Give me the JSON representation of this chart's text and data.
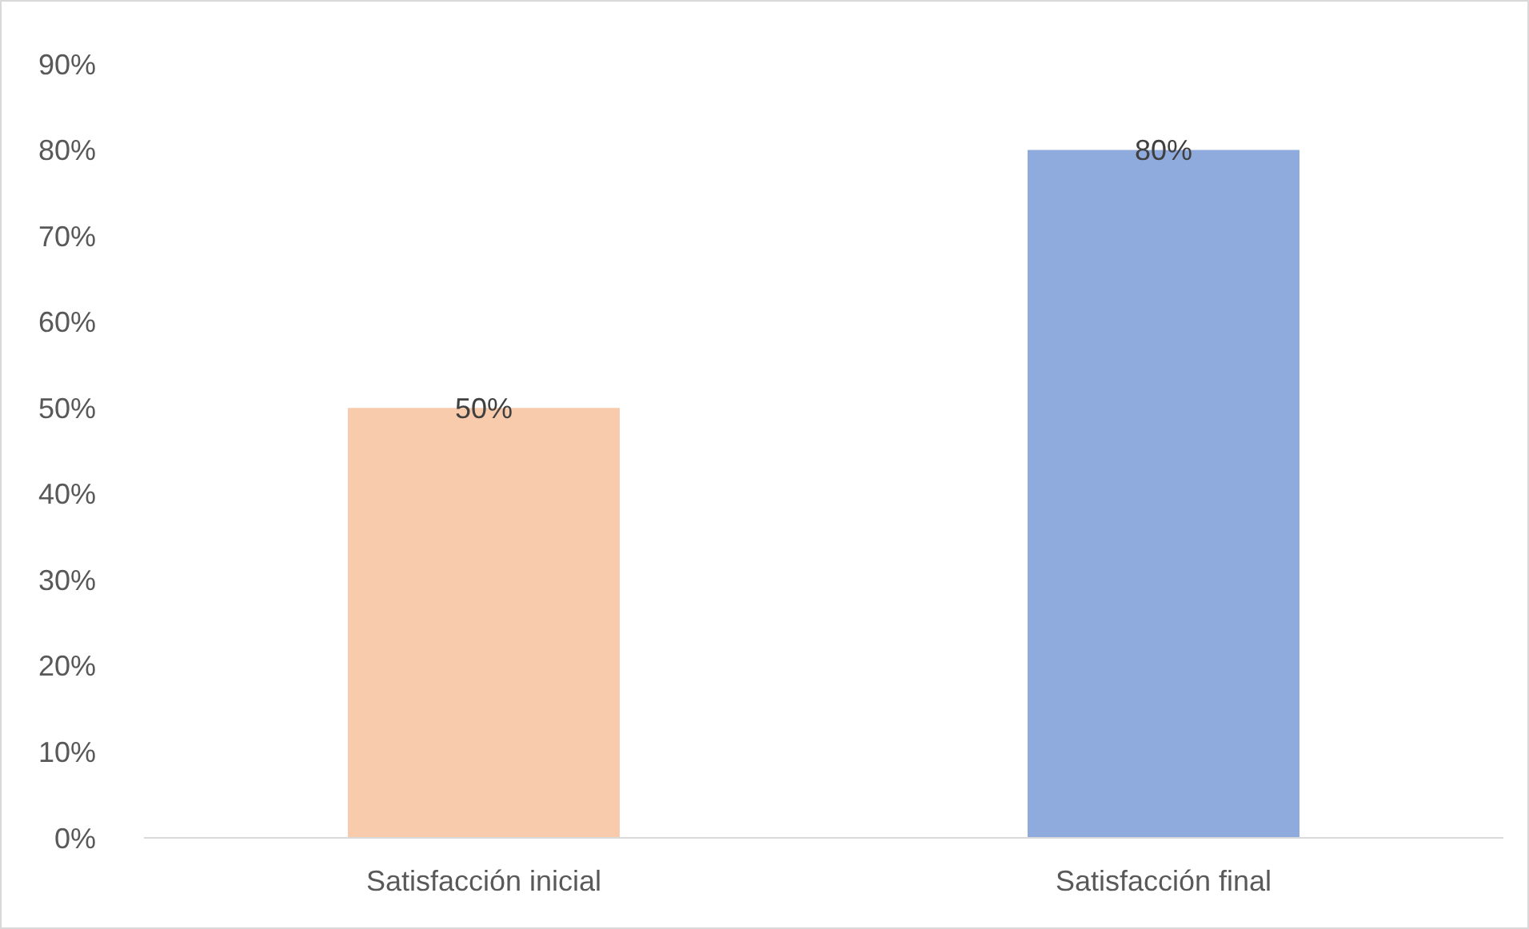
{
  "chart_data": {
    "type": "bar",
    "categories": [
      "Satisfacción inicial",
      "Satisfacción final"
    ],
    "values": [
      50,
      80
    ],
    "colors": [
      "#f8cbad",
      "#8faadc"
    ],
    "value_labels": [
      "50%",
      "80%"
    ],
    "ylim": [
      0,
      90
    ],
    "yticks": [
      {
        "value": 0,
        "label": "0%"
      },
      {
        "value": 10,
        "label": "10%"
      },
      {
        "value": 20,
        "label": "20%"
      },
      {
        "value": 30,
        "label": "30%"
      },
      {
        "value": 40,
        "label": "40%"
      },
      {
        "value": 50,
        "label": "50%"
      },
      {
        "value": 60,
        "label": "60%"
      },
      {
        "value": 70,
        "label": "70%"
      },
      {
        "value": 80,
        "label": "80%"
      },
      {
        "value": 90,
        "label": "90%"
      }
    ],
    "grid": false
  }
}
